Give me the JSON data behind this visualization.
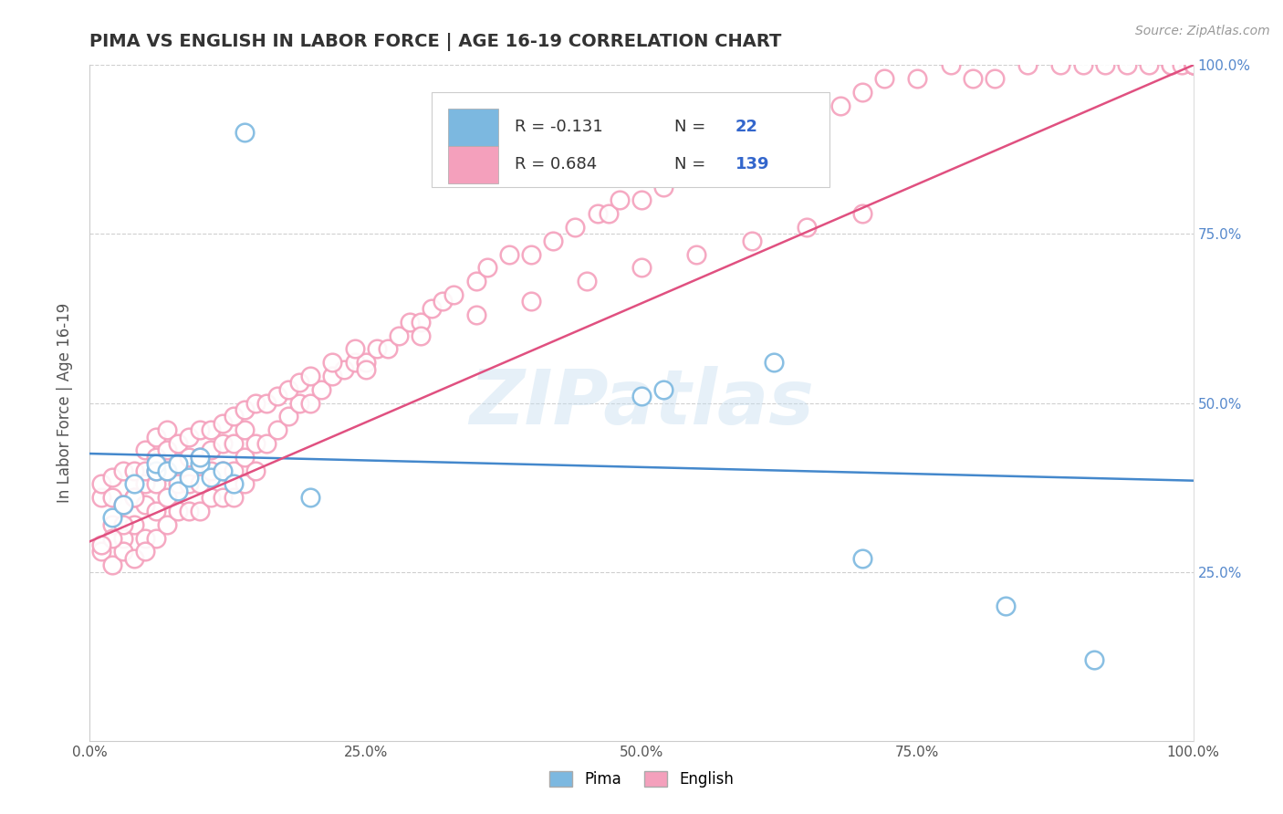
{
  "title": "PIMA VS ENGLISH IN LABOR FORCE | AGE 16-19 CORRELATION CHART",
  "source_text": "Source: ZipAtlas.com",
  "ylabel": "In Labor Force | Age 16-19",
  "pima_color": "#7cb8e0",
  "english_color": "#f4a0bc",
  "pima_edge_color": "#7cb8e0",
  "english_edge_color": "#f4a0bc",
  "trend_line_blue": "#4488cc",
  "trend_line_pink": "#e05080",
  "watermark": "ZIPatlas",
  "background_color": "#ffffff",
  "grid_color": "#bbbbbb",
  "pima_x": [
    0.04,
    0.06,
    0.06,
    0.07,
    0.08,
    0.08,
    0.09,
    0.1,
    0.1,
    0.11,
    0.12,
    0.13,
    0.02,
    0.03,
    0.14,
    0.2,
    0.5,
    0.52,
    0.62,
    0.7,
    0.83,
    0.91
  ],
  "pima_y": [
    0.38,
    0.4,
    0.41,
    0.4,
    0.37,
    0.41,
    0.39,
    0.41,
    0.42,
    0.39,
    0.4,
    0.38,
    0.33,
    0.35,
    0.9,
    0.36,
    0.51,
    0.52,
    0.56,
    0.27,
    0.2,
    0.12
  ],
  "english_x": [
    0.01,
    0.01,
    0.02,
    0.02,
    0.02,
    0.03,
    0.03,
    0.03,
    0.04,
    0.04,
    0.04,
    0.05,
    0.05,
    0.05,
    0.05,
    0.05,
    0.06,
    0.06,
    0.06,
    0.06,
    0.06,
    0.06,
    0.07,
    0.07,
    0.07,
    0.07,
    0.07,
    0.08,
    0.08,
    0.08,
    0.08,
    0.09,
    0.09,
    0.09,
    0.09,
    0.1,
    0.1,
    0.1,
    0.1,
    0.11,
    0.11,
    0.11,
    0.11,
    0.12,
    0.12,
    0.12,
    0.12,
    0.13,
    0.13,
    0.13,
    0.14,
    0.14,
    0.14,
    0.15,
    0.15,
    0.16,
    0.17,
    0.18,
    0.19,
    0.2,
    0.21,
    0.22,
    0.23,
    0.24,
    0.25,
    0.26,
    0.27,
    0.28,
    0.29,
    0.3,
    0.31,
    0.32,
    0.33,
    0.35,
    0.36,
    0.38,
    0.4,
    0.42,
    0.44,
    0.46,
    0.47,
    0.48,
    0.5,
    0.52,
    0.55,
    0.58,
    0.6,
    0.62,
    0.65,
    0.68,
    0.7,
    0.72,
    0.75,
    0.78,
    0.8,
    0.82,
    0.85,
    0.88,
    0.9,
    0.92,
    0.94,
    0.96,
    0.98,
    0.98,
    0.99,
    1.0,
    1.0,
    1.0,
    1.0,
    1.0,
    0.25,
    0.3,
    0.35,
    0.4,
    0.45,
    0.5,
    0.55,
    0.6,
    0.65,
    0.7,
    0.13,
    0.14,
    0.15,
    0.16,
    0.17,
    0.18,
    0.19,
    0.2,
    0.22,
    0.24,
    0.01,
    0.02,
    0.03,
    0.04,
    0.05,
    0.04,
    0.03,
    0.02,
    0.01
  ],
  "english_y": [
    0.36,
    0.38,
    0.32,
    0.36,
    0.39,
    0.3,
    0.35,
    0.4,
    0.32,
    0.36,
    0.4,
    0.3,
    0.35,
    0.38,
    0.4,
    0.43,
    0.3,
    0.34,
    0.38,
    0.4,
    0.42,
    0.45,
    0.32,
    0.36,
    0.4,
    0.43,
    0.46,
    0.34,
    0.38,
    0.41,
    0.44,
    0.34,
    0.38,
    0.42,
    0.45,
    0.34,
    0.38,
    0.42,
    0.46,
    0.36,
    0.4,
    0.43,
    0.46,
    0.36,
    0.4,
    0.44,
    0.47,
    0.36,
    0.4,
    0.44,
    0.38,
    0.42,
    0.46,
    0.4,
    0.44,
    0.44,
    0.46,
    0.48,
    0.5,
    0.5,
    0.52,
    0.54,
    0.55,
    0.56,
    0.56,
    0.58,
    0.58,
    0.6,
    0.62,
    0.62,
    0.64,
    0.65,
    0.66,
    0.68,
    0.7,
    0.72,
    0.72,
    0.74,
    0.76,
    0.78,
    0.78,
    0.8,
    0.8,
    0.82,
    0.84,
    0.86,
    0.88,
    0.9,
    0.92,
    0.94,
    0.96,
    0.98,
    0.98,
    1.0,
    0.98,
    0.98,
    1.0,
    1.0,
    1.0,
    1.0,
    1.0,
    1.0,
    1.0,
    1.0,
    1.0,
    1.0,
    1.0,
    1.0,
    1.0,
    1.0,
    0.55,
    0.6,
    0.63,
    0.65,
    0.68,
    0.7,
    0.72,
    0.74,
    0.76,
    0.78,
    0.48,
    0.49,
    0.5,
    0.5,
    0.51,
    0.52,
    0.53,
    0.54,
    0.56,
    0.58,
    0.28,
    0.26,
    0.28,
    0.27,
    0.28,
    0.36,
    0.32,
    0.3,
    0.29
  ],
  "pima_trend_x": [
    0.0,
    1.0
  ],
  "pima_trend_y": [
    0.425,
    0.385
  ],
  "english_trend_x": [
    0.0,
    1.0
  ],
  "english_trend_y": [
    0.295,
    1.0
  ],
  "xlim": [
    0.0,
    1.0
  ],
  "ylim": [
    0.0,
    1.0
  ],
  "xtick_values": [
    0.0,
    0.25,
    0.5,
    0.75,
    1.0
  ],
  "xtick_labels": [
    "0.0%",
    "25.0%",
    "50.0%",
    "75.0%",
    "100.0%"
  ],
  "right_ytick_values": [
    0.25,
    0.5,
    0.75,
    1.0
  ],
  "right_ytick_labels": [
    "25.0%",
    "50.0%",
    "75.0%",
    "100.0%"
  ]
}
